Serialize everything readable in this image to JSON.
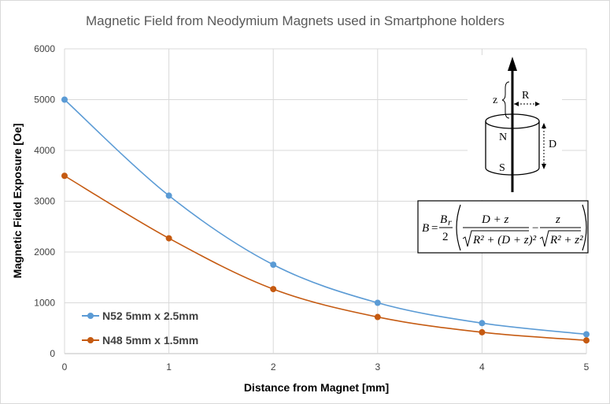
{
  "chart_data": {
    "type": "line",
    "title": "Magnetic Field from Neodymium Magnets used in Smartphone holders",
    "xlabel": "Distance from Magnet [mm]",
    "ylabel": "Magnetic Field Exposure [Oe]",
    "x": [
      0,
      1,
      2,
      3,
      4,
      5
    ],
    "xlim": [
      0,
      5
    ],
    "ylim": [
      0,
      6000
    ],
    "xticks": [
      "0",
      "1",
      "2",
      "3",
      "4",
      "5"
    ],
    "yticks": [
      "0",
      "1000",
      "2000",
      "3000",
      "4000",
      "5000",
      "6000"
    ],
    "grid": true,
    "legend_position": "bottom-left",
    "series": [
      {
        "name": "N52 5mm x 2.5mm",
        "color": "#5b9bd5",
        "values": [
          5000,
          3110,
          1750,
          1000,
          600,
          380
        ]
      },
      {
        "name": "N48 5mm x 1.5mm",
        "color": "#c55a11",
        "values": [
          3500,
          2270,
          1270,
          720,
          420,
          260
        ]
      }
    ]
  },
  "diagram": {
    "label_z": "z",
    "label_R": "R",
    "label_N": "N",
    "label_S": "S",
    "label_D": "D"
  },
  "formula": {
    "lhs": "B",
    "eq": "=",
    "Br": "B",
    "Br_sub": "r",
    "two": "2",
    "num1": "D + z",
    "den1": "R² + (D + z)²",
    "minus": "−",
    "num2": "z",
    "den2": "R² + z²"
  }
}
